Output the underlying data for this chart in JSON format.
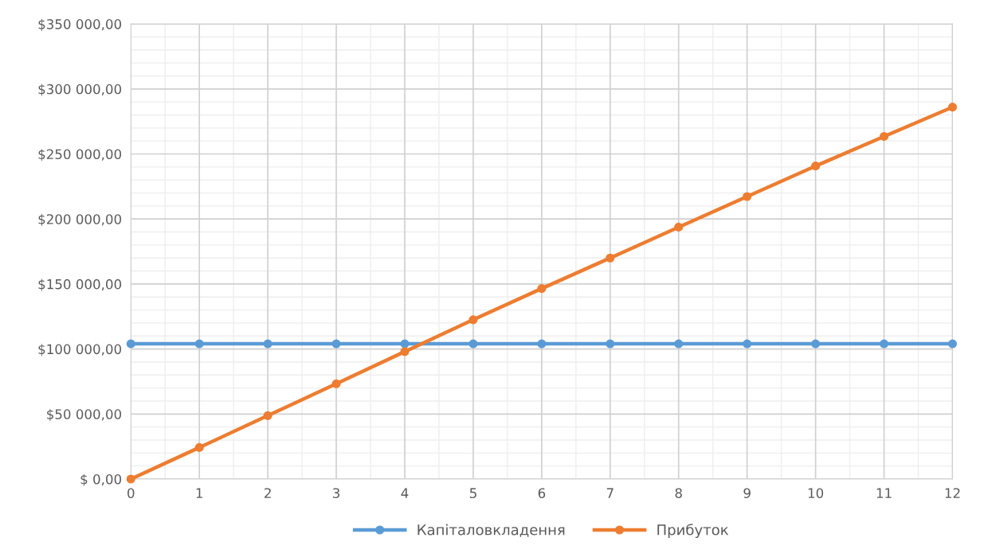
{
  "chart_data": {
    "type": "line",
    "x": [
      0,
      1,
      2,
      3,
      4,
      5,
      6,
      7,
      8,
      9,
      10,
      11,
      12
    ],
    "series": [
      {
        "name": "Капіталовкладення",
        "color": "#5b9bd5",
        "values": [
          104000,
          104000,
          104000,
          104000,
          104000,
          104000,
          104000,
          104000,
          104000,
          104000,
          104000,
          104000,
          104000
        ]
      },
      {
        "name": "Прибуток",
        "color": "#ed7d31",
        "values": [
          0,
          24250,
          48750,
          73250,
          98000,
          122500,
          146500,
          170000,
          193750,
          217250,
          240750,
          263500,
          286000
        ]
      }
    ],
    "xlim": [
      0,
      12
    ],
    "xticks": [
      0,
      1,
      2,
      3,
      4,
      5,
      6,
      7,
      8,
      9,
      10,
      11,
      12
    ],
    "ylim": [
      0,
      350000
    ],
    "yticks": [
      {
        "value": 0,
        "label": "$ 0,00"
      },
      {
        "value": 50000,
        "label": "$50 000,00"
      },
      {
        "value": 100000,
        "label": "$100 000,00"
      },
      {
        "value": 150000,
        "label": "$150 000,00"
      },
      {
        "value": 200000,
        "label": "$200 000,00"
      },
      {
        "value": 250000,
        "label": "$250 000,00"
      },
      {
        "value": 300000,
        "label": "$300 000,00"
      },
      {
        "value": 350000,
        "label": "$350 000,00"
      }
    ],
    "grid": true,
    "legend": "bottom",
    "marker": "circle",
    "line_style": "solid"
  }
}
